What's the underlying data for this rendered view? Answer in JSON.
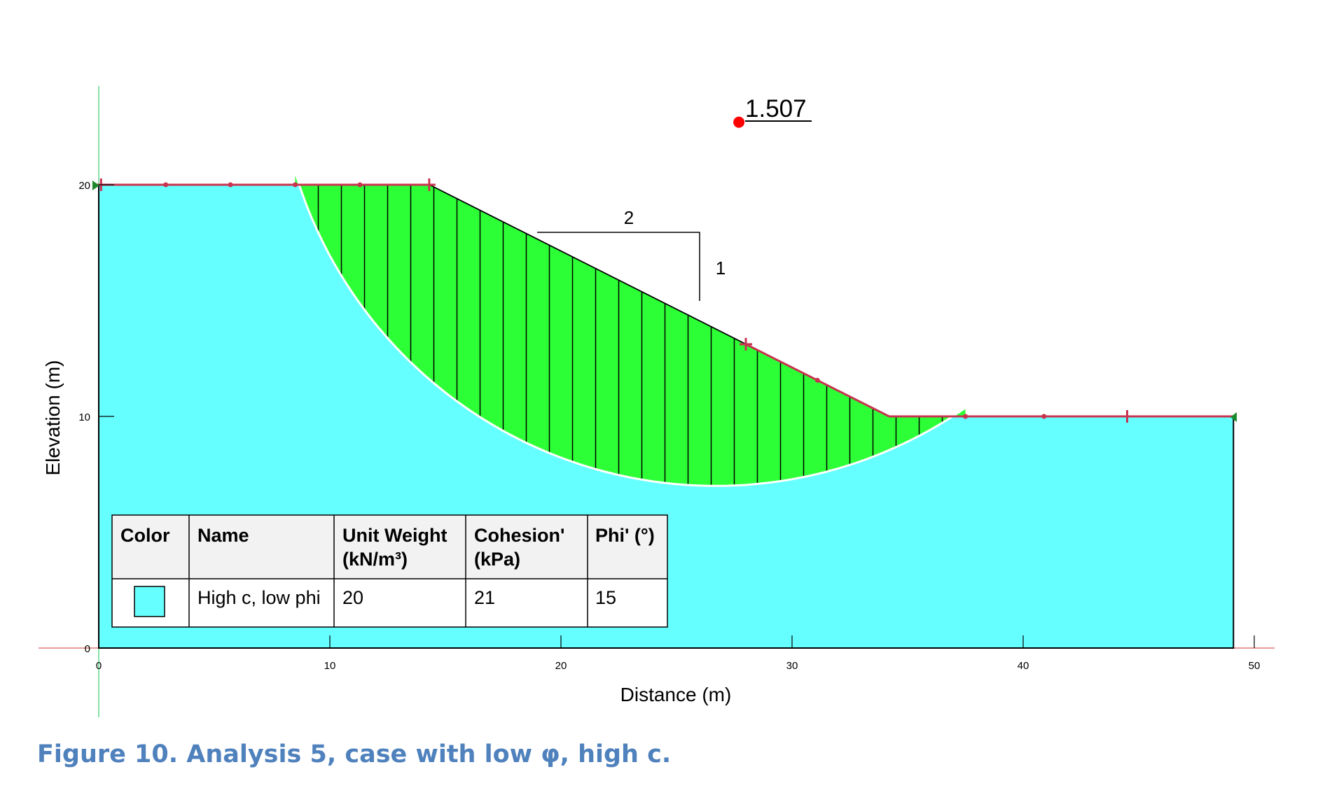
{
  "factor_of_safety": "1.507",
  "axes": {
    "xlabel": "Distance (m)",
    "ylabel": "Elevation (m)",
    "x_ticks": [
      "0",
      "10",
      "20",
      "30",
      "40",
      "50"
    ],
    "y_ticks": [
      "0",
      "10",
      "20"
    ],
    "x_range": [
      0,
      50
    ],
    "y_range": [
      0,
      20
    ]
  },
  "geometry": {
    "crest_elevation": 20,
    "toe_elevation": 10,
    "crest_end_x": 14.3,
    "toe_start_x": 34.2,
    "model_right_x": 49.1,
    "slip_surface": {
      "center": [
        26.7,
        26.0
      ],
      "radius": 19.0,
      "entry_x": 8.5,
      "exit_x": 37.5
    },
    "slip_center_point": [
      27.7,
      22.7
    ],
    "slope_ratio": {
      "horizontal": "2",
      "vertical": "1"
    }
  },
  "legend": {
    "headers": [
      "Color",
      "Name",
      "Unit Weight (kN/m³)",
      "Cohesion' (kPa)",
      "Phi' (°)"
    ],
    "rows": [
      {
        "color": "#66ffff",
        "name": "High c, low phi",
        "unit_weight": "20",
        "cohesion": "21",
        "phi": "15"
      }
    ]
  },
  "colors": {
    "soil": "#66ffff",
    "slide_mass": "#2dff36",
    "boundary": "#c8334f",
    "slip_point": "#ff0000",
    "caption": "#4f81bd"
  },
  "caption": "Figure 10.  Analysis 5, case with low φ, high c."
}
